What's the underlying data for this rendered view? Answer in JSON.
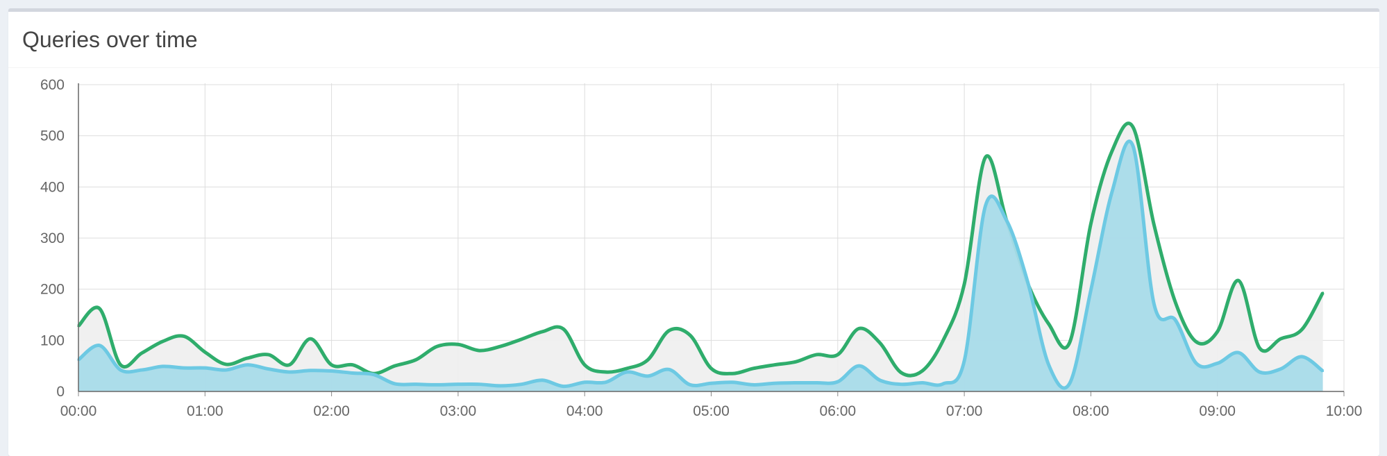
{
  "panel": {
    "title": "Queries over time"
  },
  "chart_data": {
    "type": "area",
    "title": "Queries over time",
    "xlabel": "",
    "ylabel": "",
    "x_unit": "hours",
    "x_tick_labels": [
      "00:00",
      "01:00",
      "02:00",
      "03:00",
      "04:00",
      "05:00",
      "06:00",
      "07:00",
      "08:00",
      "09:00",
      "10:00"
    ],
    "ylim": [
      0,
      600
    ],
    "y_ticks": [
      0,
      100,
      200,
      300,
      400,
      500,
      600
    ],
    "grid": true,
    "legend": "none",
    "x": [
      0.0,
      0.167,
      0.333,
      0.5,
      0.667,
      0.833,
      1.0,
      1.167,
      1.333,
      1.5,
      1.667,
      1.833,
      2.0,
      2.167,
      2.333,
      2.5,
      2.667,
      2.833,
      3.0,
      3.167,
      3.333,
      3.5,
      3.667,
      3.833,
      4.0,
      4.167,
      4.333,
      4.5,
      4.667,
      4.833,
      5.0,
      5.167,
      5.333,
      5.5,
      5.667,
      5.833,
      6.0,
      6.167,
      6.333,
      6.5,
      6.667,
      6.833,
      7.0,
      7.167,
      7.333,
      7.5,
      7.667,
      7.833,
      8.0,
      8.167,
      8.333,
      8.5,
      8.667,
      8.833,
      9.0,
      9.167,
      9.333,
      9.5,
      9.667,
      9.833
    ],
    "series": [
      {
        "color": "#2fad6c",
        "fill": "#eeeeee",
        "values": [
          128,
          162,
          52,
          75,
          98,
          108,
          77,
          53,
          65,
          72,
          52,
          103,
          52,
          52,
          35,
          50,
          62,
          88,
          92,
          80,
          88,
          102,
          117,
          122,
          52,
          38,
          45,
          62,
          119,
          110,
          45,
          35,
          45,
          52,
          58,
          72,
          72,
          123,
          95,
          37,
          40,
          100,
          210,
          458,
          335,
          212,
          132,
          96,
          328,
          470,
          517,
          325,
          175,
          97,
          117,
          217,
          85,
          103,
          121,
          193
        ]
      },
      {
        "color": "#6dc9e3",
        "fill": "#a8dbe9",
        "values": [
          62,
          90,
          42,
          42,
          49,
          46,
          46,
          42,
          52,
          44,
          38,
          41,
          40,
          36,
          33,
          15,
          14,
          13,
          14,
          14,
          11,
          14,
          22,
          10,
          18,
          18,
          38,
          30,
          43,
          13,
          16,
          18,
          13,
          16,
          17,
          17,
          19,
          50,
          22,
          14,
          17,
          15,
          60,
          363,
          335,
          215,
          52,
          16,
          198,
          390,
          480,
          170,
          140,
          55,
          55,
          76,
          38,
          44,
          68,
          40
        ]
      }
    ]
  }
}
